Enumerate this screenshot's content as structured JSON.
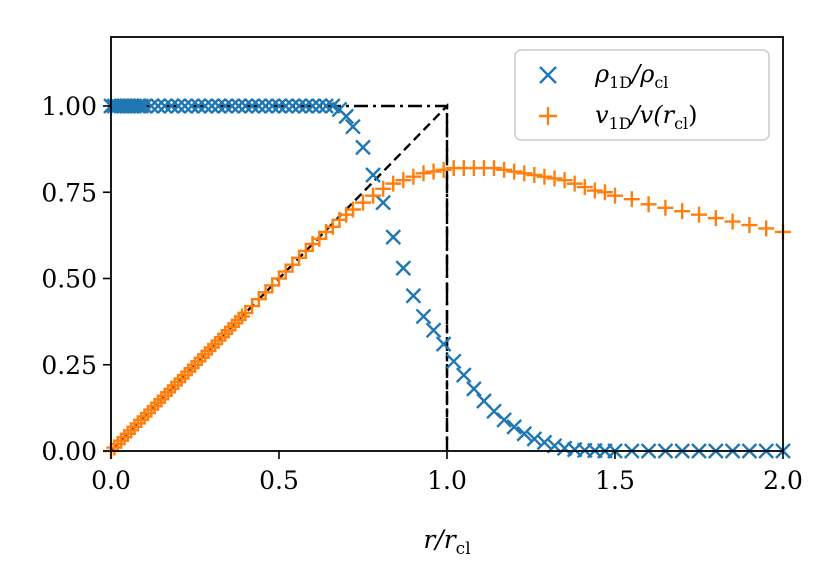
{
  "chart_data": {
    "type": "scatter",
    "xlabel": "r/r_cl",
    "xlabel_parts": {
      "main": "r/r",
      "sub": "cl"
    },
    "xlim": [
      0.0,
      2.0
    ],
    "ylim": [
      0.0,
      1.2
    ],
    "xticks": [
      "0.0",
      "0.5",
      "1.0",
      "1.5",
      "2.0"
    ],
    "yticks": [
      "0.00",
      "0.25",
      "0.50",
      "0.75",
      "1.00"
    ],
    "grid": false,
    "legend_position": "top-right",
    "series": [
      {
        "name": "ρ1D/ρcl",
        "legend_parts": {
          "a": "ρ",
          "a_sub": "1D",
          "b": "/ρ",
          "b_sub": "cl"
        },
        "marker": "x",
        "color": "#1f77b4",
        "x": [
          0.0,
          0.01,
          0.02,
          0.03,
          0.04,
          0.05,
          0.06,
          0.07,
          0.08,
          0.09,
          0.1,
          0.12,
          0.14,
          0.16,
          0.18,
          0.2,
          0.22,
          0.24,
          0.26,
          0.28,
          0.3,
          0.32,
          0.34,
          0.36,
          0.38,
          0.4,
          0.42,
          0.44,
          0.46,
          0.48,
          0.5,
          0.52,
          0.54,
          0.56,
          0.58,
          0.6,
          0.62,
          0.64,
          0.66,
          0.68,
          0.7,
          0.72,
          0.75,
          0.78,
          0.81,
          0.84,
          0.87,
          0.9,
          0.93,
          0.96,
          0.99,
          1.02,
          1.05,
          1.08,
          1.11,
          1.14,
          1.17,
          1.2,
          1.23,
          1.26,
          1.29,
          1.32,
          1.35,
          1.38,
          1.41,
          1.44,
          1.47,
          1.5,
          1.55,
          1.6,
          1.65,
          1.7,
          1.75,
          1.8,
          1.85,
          1.9,
          1.95,
          2.0
        ],
        "y": [
          1.0,
          1.0,
          1.0,
          1.0,
          1.0,
          1.0,
          1.0,
          1.0,
          1.0,
          1.0,
          1.0,
          1.0,
          1.0,
          1.0,
          1.0,
          1.0,
          1.0,
          1.0,
          1.0,
          1.0,
          1.0,
          1.0,
          1.0,
          1.0,
          1.0,
          1.0,
          1.0,
          1.0,
          1.0,
          1.0,
          1.0,
          1.0,
          1.0,
          1.0,
          1.0,
          1.0,
          1.0,
          1.0,
          1.0,
          0.99,
          0.97,
          0.94,
          0.88,
          0.8,
          0.72,
          0.62,
          0.53,
          0.45,
          0.39,
          0.35,
          0.31,
          0.26,
          0.22,
          0.18,
          0.145,
          0.115,
          0.09,
          0.07,
          0.05,
          0.035,
          0.025,
          0.015,
          0.008,
          0.004,
          0.002,
          0.001,
          0.0,
          0.0,
          0.0,
          0.0,
          0.0,
          0.0,
          0.0,
          0.0,
          0.0,
          0.0,
          0.0,
          0.0
        ]
      },
      {
        "name": "v1D/v(rcl)",
        "legend_parts": {
          "a": "v",
          "a_sub": "1D",
          "b": "/v(r",
          "b_sub": "cl",
          "c": ")"
        },
        "marker": "+",
        "color": "#ff7f0e",
        "x": [
          0.0,
          0.01,
          0.02,
          0.03,
          0.04,
          0.05,
          0.06,
          0.07,
          0.08,
          0.09,
          0.1,
          0.11,
          0.12,
          0.13,
          0.14,
          0.15,
          0.16,
          0.17,
          0.18,
          0.19,
          0.2,
          0.21,
          0.22,
          0.23,
          0.24,
          0.25,
          0.26,
          0.27,
          0.28,
          0.29,
          0.3,
          0.31,
          0.32,
          0.33,
          0.34,
          0.35,
          0.36,
          0.37,
          0.38,
          0.39,
          0.4,
          0.42,
          0.44,
          0.46,
          0.48,
          0.5,
          0.52,
          0.54,
          0.56,
          0.58,
          0.6,
          0.62,
          0.64,
          0.66,
          0.68,
          0.7,
          0.72,
          0.75,
          0.78,
          0.81,
          0.84,
          0.87,
          0.9,
          0.93,
          0.96,
          0.99,
          1.02,
          1.05,
          1.08,
          1.11,
          1.14,
          1.17,
          1.2,
          1.23,
          1.26,
          1.29,
          1.32,
          1.35,
          1.38,
          1.41,
          1.44,
          1.47,
          1.5,
          1.55,
          1.6,
          1.65,
          1.7,
          1.75,
          1.8,
          1.85,
          1.9,
          1.95,
          2.0
        ],
        "y": [
          0.0,
          0.01,
          0.02,
          0.03,
          0.04,
          0.05,
          0.06,
          0.07,
          0.08,
          0.09,
          0.1,
          0.11,
          0.12,
          0.13,
          0.14,
          0.15,
          0.16,
          0.17,
          0.18,
          0.19,
          0.2,
          0.21,
          0.22,
          0.23,
          0.24,
          0.25,
          0.26,
          0.27,
          0.28,
          0.29,
          0.3,
          0.31,
          0.32,
          0.33,
          0.34,
          0.35,
          0.36,
          0.37,
          0.38,
          0.39,
          0.4,
          0.42,
          0.44,
          0.46,
          0.48,
          0.5,
          0.52,
          0.54,
          0.56,
          0.58,
          0.6,
          0.615,
          0.635,
          0.65,
          0.67,
          0.685,
          0.7,
          0.72,
          0.74,
          0.76,
          0.775,
          0.785,
          0.795,
          0.805,
          0.81,
          0.815,
          0.82,
          0.82,
          0.82,
          0.82,
          0.82,
          0.815,
          0.81,
          0.805,
          0.8,
          0.795,
          0.79,
          0.785,
          0.775,
          0.765,
          0.755,
          0.75,
          0.74,
          0.73,
          0.715,
          0.705,
          0.695,
          0.685,
          0.675,
          0.665,
          0.655,
          0.645,
          0.635
        ]
      }
    ],
    "reference_lines": [
      {
        "style": "dash-dot",
        "color": "#000000",
        "x": [
          0.0,
          1.0,
          1.0
        ],
        "y": [
          1.0,
          1.0,
          0.0
        ]
      },
      {
        "style": "dashed",
        "color": "#000000",
        "x": [
          0.0,
          1.0,
          1.0
        ],
        "y": [
          0.0,
          1.0,
          0.0
        ]
      }
    ]
  }
}
